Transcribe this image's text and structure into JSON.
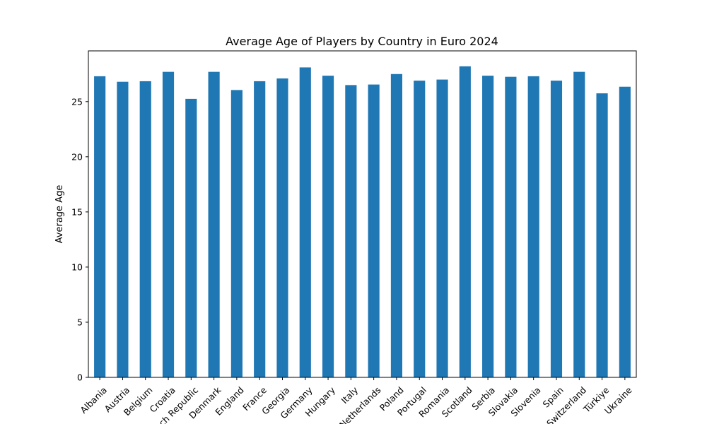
{
  "chart_data": {
    "type": "bar",
    "title": "Average Age of Players by Country in Euro 2024",
    "xlabel": "",
    "ylabel": "Average Age",
    "categories": [
      "Albania",
      "Austria",
      "Belgium",
      "Croatia",
      "Czech Republic",
      "Denmark",
      "England",
      "France",
      "Georgia",
      "Germany",
      "Hungary",
      "Italy",
      "Netherlands",
      "Poland",
      "Portugal",
      "Romania",
      "Scotland",
      "Serbia",
      "Slovakia",
      "Slovenia",
      "Spain",
      "Switzerland",
      "Türkiye",
      "Ukraine"
    ],
    "values": [
      27.3,
      26.8,
      26.85,
      27.7,
      25.25,
      27.7,
      26.05,
      26.85,
      27.1,
      28.1,
      27.35,
      26.5,
      26.55,
      27.5,
      26.9,
      27.0,
      28.2,
      27.35,
      27.25,
      27.3,
      26.9,
      27.7,
      25.75,
      26.35
    ],
    "ylim": [
      0,
      29.6
    ],
    "yticks": [
      0,
      5,
      10,
      15,
      20,
      25
    ],
    "bar_color": "#1f77b4",
    "legend": "none",
    "grid": false
  }
}
